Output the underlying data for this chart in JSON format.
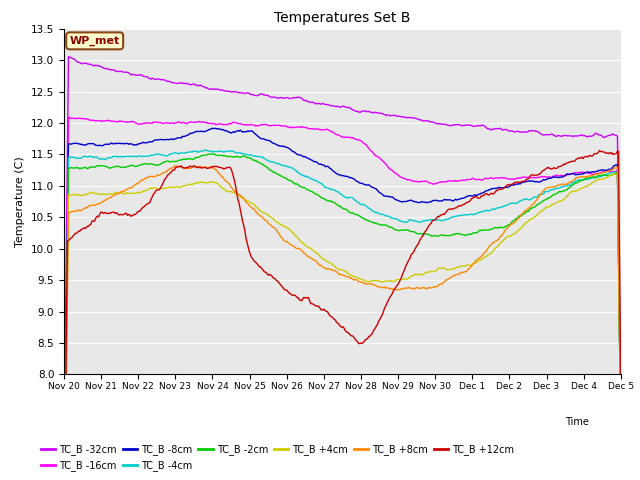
{
  "title": "Temperatures Set B",
  "ylabel": "Temperature (C)",
  "xlabel": "Time",
  "ylim": [
    8.0,
    13.5
  ],
  "yticks": [
    8.0,
    8.5,
    9.0,
    9.5,
    10.0,
    10.5,
    11.0,
    11.5,
    12.0,
    12.5,
    13.0,
    13.5
  ],
  "bg_color": "#e8e8e8",
  "fig_color": "#ffffff",
  "wp_met_label": "WP_met",
  "wp_met_bg": "#ffffcc",
  "wp_met_border": "#8b4513",
  "wp_met_text_color": "#8b0000",
  "series": [
    {
      "label": "TC_B -32cm",
      "color": "#cc00ff",
      "lw": 1.0
    },
    {
      "label": "TC_B -16cm",
      "color": "#ff00ff",
      "lw": 1.0
    },
    {
      "label": "TC_B -8cm",
      "color": "#0000cc",
      "lw": 1.0
    },
    {
      "label": "TC_B -4cm",
      "color": "#00cccc",
      "lw": 1.0
    },
    {
      "label": "TC_B -2cm",
      "color": "#00cc00",
      "lw": 1.0
    },
    {
      "label": "TC_B +4cm",
      "color": "#cccc00",
      "lw": 1.0
    },
    {
      "label": "TC_B +8cm",
      "color": "#ff8800",
      "lw": 1.0
    },
    {
      "label": "TC_B +12cm",
      "color": "#cc0000",
      "lw": 1.0
    }
  ],
  "n_points": 500,
  "xtick_labels": [
    "Nov 20",
    "Nov 21",
    "Nov 22",
    "Nov 23",
    "Nov 24",
    "Nov 25",
    "Nov 26",
    "Nov 27",
    "Nov 28",
    "Nov 29",
    "Nov 30",
    "Dec 1",
    "Dec 2",
    "Dec 3",
    "Dec 4",
    "Dec 5"
  ],
  "xtick_positions": [
    0,
    1,
    2,
    3,
    4,
    5,
    6,
    7,
    8,
    9,
    10,
    11,
    12,
    13,
    14,
    15
  ]
}
